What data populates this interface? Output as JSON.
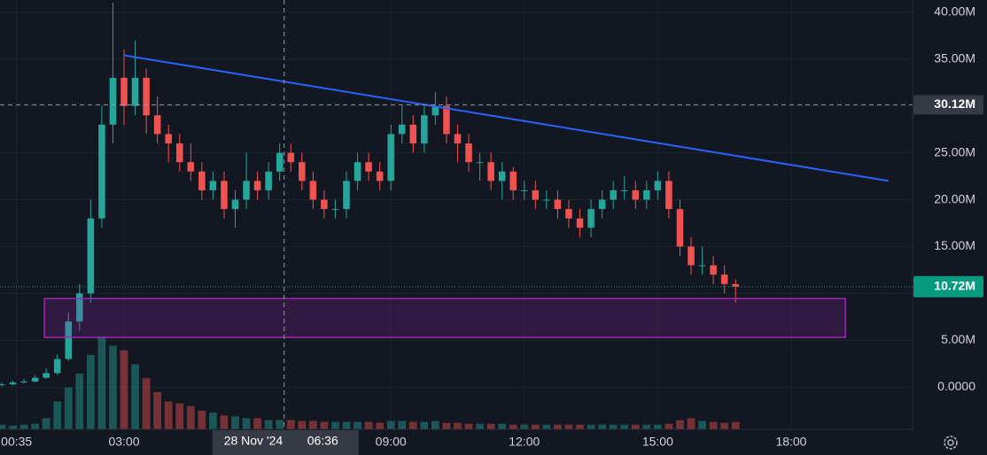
{
  "chart_data": {
    "type": "candlestick",
    "xlim": [
      0.211,
      20.73
    ],
    "xticks": [
      {
        "value": 0.5833,
        "label": "00:35"
      },
      {
        "value": 3,
        "label": "03:00"
      },
      {
        "value": 9,
        "label": "09:00"
      },
      {
        "value": 12,
        "label": "12:00"
      },
      {
        "value": 15,
        "label": "15:00"
      },
      {
        "value": 18,
        "label": "18:00"
      }
    ],
    "ylim": [
      -4.5,
      41.3
    ],
    "yticks": [
      {
        "value": 0,
        "label": "0.0000"
      },
      {
        "value": 5,
        "label": "5.00M"
      },
      {
        "value": 10,
        "label": "10.00M"
      },
      {
        "value": 15,
        "label": "15.00M"
      },
      {
        "value": 20,
        "label": "20.00M"
      },
      {
        "value": 25,
        "label": "25.00M"
      },
      {
        "value": 30,
        "label": "30.00M"
      },
      {
        "value": 35,
        "label": "35.00M"
      },
      {
        "value": 40,
        "label": "40.00M"
      }
    ],
    "grid": true,
    "up_color": "#26a69a",
    "down_color": "#ef5350",
    "candles": {
      "x": [
        0.25,
        0.5,
        0.75,
        1,
        1.25,
        1.5,
        1.75,
        2,
        2.25,
        2.5,
        2.75,
        3,
        3.25,
        3.5,
        3.75,
        4,
        4.25,
        4.5,
        4.75,
        5,
        5.25,
        5.5,
        5.75,
        6,
        6.25,
        6.5,
        6.75,
        7,
        7.25,
        7.5,
        7.75,
        8,
        8.25,
        8.5,
        8.75,
        9,
        9.25,
        9.5,
        9.75,
        10,
        10.25,
        10.5,
        10.75,
        11,
        11.25,
        11.5,
        11.75,
        12,
        12.25,
        12.5,
        12.75,
        13,
        13.25,
        13.5,
        13.75,
        14,
        14.25,
        14.5,
        14.75,
        15,
        15.25,
        15.5,
        15.75,
        16,
        16.25,
        16.5,
        16.75
      ],
      "open": [
        0.2,
        0.3,
        0.5,
        0.6,
        1,
        1.5,
        3,
        7,
        10,
        18,
        28,
        33,
        30,
        33,
        29,
        27,
        26,
        24,
        23,
        21,
        22,
        19,
        20,
        22,
        21,
        23,
        25,
        24,
        22,
        20,
        19,
        19,
        22,
        24,
        23,
        22,
        27,
        28,
        26,
        29,
        30,
        27,
        26,
        24,
        24,
        22,
        23,
        21,
        21,
        20,
        20,
        19,
        18,
        17,
        19,
        20,
        21,
        21,
        20,
        21,
        22,
        19,
        15,
        13,
        13,
        12,
        11
      ],
      "high": [
        0.5,
        0.7,
        0.9,
        1.3,
        2,
        3.5,
        8,
        11,
        20,
        30,
        41,
        36,
        37,
        34,
        31,
        28,
        27,
        26,
        24,
        23,
        23,
        21,
        25,
        23,
        24,
        26,
        26,
        25,
        23,
        21,
        20,
        23,
        25,
        25,
        24,
        28,
        30,
        29,
        30,
        31.5,
        31,
        28,
        27,
        25,
        25,
        24,
        23.5,
        22,
        22,
        21,
        21,
        20,
        19,
        20,
        21,
        22,
        22.5,
        22,
        22,
        23,
        23,
        20,
        16,
        15,
        14,
        13,
        11.5
      ],
      "low": [
        0.1,
        0.2,
        0.4,
        0.5,
        0.9,
        1.3,
        2.8,
        6,
        9,
        17,
        26,
        28,
        29,
        27,
        26,
        24,
        23,
        22,
        20,
        20,
        18,
        17,
        19,
        20,
        20,
        22,
        23,
        21,
        19,
        18,
        18,
        18,
        21,
        22,
        21,
        21,
        26,
        25,
        25,
        28,
        26,
        24,
        23,
        22,
        21,
        20,
        20,
        20,
        19,
        19,
        18,
        17,
        16,
        16,
        18,
        19,
        20,
        19,
        19,
        20,
        18,
        14,
        12,
        12,
        11,
        10,
        9
      ],
      "close": [
        0.3,
        0.5,
        0.6,
        1,
        1.5,
        3,
        7,
        10,
        18,
        28,
        33,
        30,
        33,
        29,
        27,
        26,
        24,
        23,
        21,
        22,
        19,
        20,
        22,
        21,
        23,
        25,
        24,
        22,
        20,
        19,
        19,
        22,
        24,
        23,
        22,
        27,
        28,
        26,
        29,
        30,
        27,
        26,
        24,
        24,
        22,
        23,
        21,
        21,
        20,
        20,
        19,
        18,
        17,
        19,
        20,
        21,
        21,
        20,
        21,
        22,
        19,
        15,
        13,
        13,
        12,
        11,
        10.72
      ],
      "volume": [
        5,
        4,
        5,
        6,
        12,
        30,
        45,
        60,
        80,
        100,
        90,
        85,
        70,
        55,
        40,
        30,
        28,
        25,
        20,
        18,
        15,
        14,
        12,
        12,
        10,
        10,
        10,
        9,
        9,
        8,
        8,
        8,
        8,
        8,
        7,
        9,
        9,
        8,
        8,
        9,
        7,
        7,
        6,
        6,
        6,
        6,
        5,
        5,
        5,
        5,
        5,
        5,
        5,
        5,
        5,
        5,
        5,
        5,
        5,
        5,
        6,
        10,
        12,
        9,
        8,
        7,
        8
      ]
    },
    "volume_lim": [
      0,
      100
    ],
    "trendline": {
      "x": [
        3.0,
        20.19
      ],
      "y": [
        35.4,
        22.0
      ],
      "color": "#2962ff"
    },
    "zone": {
      "x": [
        1.21,
        19.22
      ],
      "y": [
        5.3,
        9.45
      ],
      "color": "#9c27b0"
    },
    "crosshair": {
      "x": 6.6,
      "date_label": "28 Nov '24",
      "time_label": "06:36",
      "y": {
        "value": 30.12,
        "label": "30.12M"
      }
    },
    "last_price": {
      "value": 10.72,
      "label": "10.72M",
      "color": "#089981"
    }
  }
}
